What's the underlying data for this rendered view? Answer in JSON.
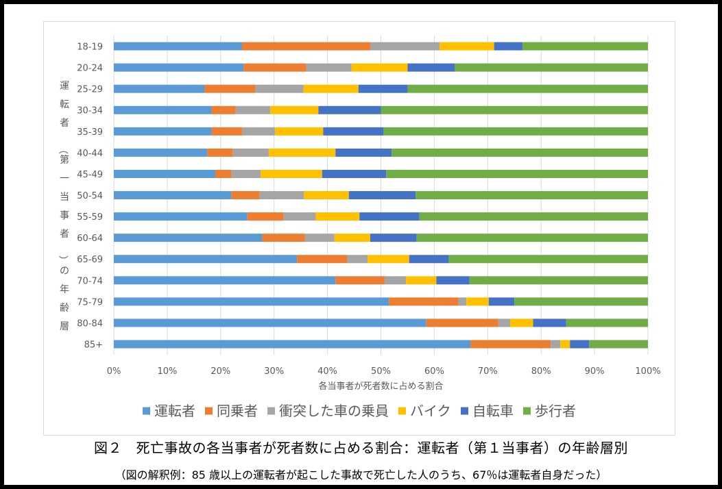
{
  "chart_data": {
    "type": "bar",
    "orientation": "horizontal",
    "stacked": "percent",
    "categories": [
      "18-19",
      "20-24",
      "25-29",
      "30-34",
      "35-39",
      "40-44",
      "45-49",
      "50-54",
      "55-59",
      "60-64",
      "65-69",
      "70-74",
      "75-79",
      "80-84",
      "85+"
    ],
    "series": [
      {
        "name": "運転者",
        "color": "#5B9BD5",
        "values": [
          24.0,
          24.3,
          17.0,
          18.3,
          18.3,
          17.5,
          19.0,
          22.0,
          25.0,
          27.8,
          34.3,
          41.5,
          51.5,
          58.5,
          66.8
        ]
      },
      {
        "name": "同乗者",
        "color": "#ED7D31",
        "values": [
          24.0,
          11.7,
          9.5,
          4.5,
          5.7,
          4.8,
          3.0,
          5.3,
          6.8,
          8.0,
          9.4,
          9.2,
          13.0,
          13.5,
          15.0
        ]
      },
      {
        "name": "衝突した車の乗員",
        "color": "#A5A5A5",
        "values": [
          13.0,
          8.5,
          9.0,
          6.5,
          6.2,
          6.7,
          5.5,
          8.3,
          6.0,
          5.5,
          3.8,
          4.0,
          1.5,
          2.2,
          1.8
        ]
      },
      {
        "name": "バイク",
        "color": "#FFC000",
        "values": [
          10.2,
          10.5,
          10.3,
          9.0,
          9.0,
          12.5,
          11.5,
          8.4,
          8.2,
          6.7,
          7.8,
          5.7,
          4.2,
          4.3,
          1.8
        ]
      },
      {
        "name": "自転車",
        "color": "#4472C4",
        "values": [
          5.3,
          8.8,
          9.2,
          11.7,
          11.3,
          10.5,
          12.0,
          12.5,
          11.2,
          8.7,
          7.4,
          6.2,
          4.8,
          6.2,
          3.6
        ]
      },
      {
        "name": "歩行者",
        "color": "#70AD47",
        "values": [
          23.5,
          36.2,
          45.0,
          50.0,
          49.5,
          48.0,
          49.0,
          43.5,
          42.8,
          43.3,
          37.3,
          33.4,
          25.0,
          15.3,
          11.0
        ]
      }
    ],
    "xticks": [
      "0%",
      "10%",
      "20%",
      "30%",
      "40%",
      "50%",
      "60%",
      "70%",
      "80%",
      "90%",
      "100%"
    ],
    "xlim": [
      0,
      100
    ],
    "xlabel": "各当事者が死者数に占める割合",
    "ylabel": "運転者（第一当事者）の年齢層",
    "legend_position": "bottom",
    "grid": "vertical"
  },
  "caption": "図２　死亡事故の各当事者が死者数に占める割合：運転者（第１当事者）の年齢層別",
  "note": "（図の解釈例：85 歳以上の運転者が起こした事故で死亡した人のうち、67％は運転者自身だった）"
}
